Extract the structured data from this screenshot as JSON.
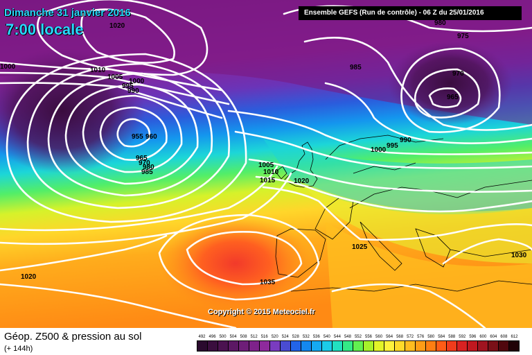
{
  "header": {
    "date": "Dimanche 31 janvier 2016",
    "time": "7:00 locale",
    "run_info": "Ensemble GEFS   (Run de contrôle)   -   06 Z du 25/01/2016"
  },
  "footer": {
    "title": "Géop. Z500 & pression au sol",
    "lead": "(+ 144h)",
    "copyright": "Copyright © 2015 Meteociel.fr"
  },
  "legend": {
    "labels": [
      "492",
      "496",
      "500",
      "504",
      "508",
      "512",
      "516",
      "520",
      "524",
      "528",
      "532",
      "536",
      "540",
      "544",
      "548",
      "552",
      "556",
      "560",
      "564",
      "568",
      "572",
      "576",
      "580",
      "584",
      "588",
      "592",
      "596",
      "600",
      "604",
      "608",
      "612"
    ],
    "colors": [
      "#2a0a2e",
      "#3a0e3e",
      "#4b1250",
      "#5c1864",
      "#6e1e78",
      "#7e228a",
      "#8e2a9c",
      "#7a3cc0",
      "#4a4cd2",
      "#2264e8",
      "#1488f0",
      "#16aaf2",
      "#1ccbe8",
      "#22e0c0",
      "#34ea86",
      "#62f050",
      "#a6f22a",
      "#e2f428",
      "#fff23c",
      "#ffda2a",
      "#ffbc20",
      "#ff9c16",
      "#ff7e12",
      "#ff5c16",
      "#f03c1c",
      "#d82222",
      "#c01820",
      "#a01420",
      "#7a1018",
      "#50080e",
      "#200206"
    ]
  },
  "isobars": [
    {
      "label": "1020"
    },
    {
      "label": "1000"
    },
    {
      "label": "1010"
    },
    {
      "label": "1005"
    },
    {
      "label": "1000"
    },
    {
      "label": "995"
    },
    {
      "label": "990"
    },
    {
      "label": "955"
    },
    {
      "label": "960"
    },
    {
      "label": "965"
    },
    {
      "label": "970"
    },
    {
      "label": "980"
    },
    {
      "label": "985"
    },
    {
      "label": "980"
    },
    {
      "label": "975"
    },
    {
      "label": "985"
    },
    {
      "label": "970"
    },
    {
      "label": "965"
    },
    {
      "label": "1000"
    },
    {
      "label": "995"
    },
    {
      "label": "990"
    },
    {
      "label": "1005"
    },
    {
      "label": "1010"
    },
    {
      "label": "1015"
    },
    {
      "label": "1020"
    },
    {
      "label": "1025"
    },
    {
      "label": "1030"
    },
    {
      "label": "1035"
    },
    {
      "label": "1020"
    }
  ]
}
